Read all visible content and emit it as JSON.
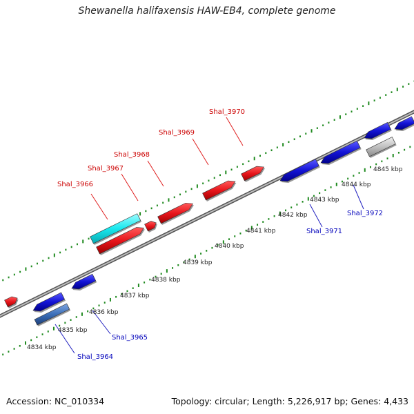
{
  "title": "Shewanella halifaxensis HAW-EB4, complete genome",
  "footer": {
    "accession": "Accession: NC_010334",
    "info": "Topology: circular; Length: 5,226,917 bp; Genes: 4,433"
  },
  "colors": {
    "forward_gene": "#e8161c",
    "reverse_gene": "#1414d6",
    "highlight_gene": "#18e8ee",
    "selected_gene": "#3c6fb8",
    "other_feature": "#c0c0c0",
    "backbone": "#888888",
    "tick": "#1f8a1f",
    "forward_label": "#cc0000",
    "reverse_label": "#0000bb"
  },
  "kbp_labels": [
    "4834 kbp",
    "4835 kbp",
    "4836 kbp",
    "4837 kbp",
    "4838 kbp",
    "4839 kbp",
    "4840 kbp",
    "4841 kbp",
    "4842 kbp",
    "4843 kbp",
    "4844 kbp",
    "4845 kbp"
  ],
  "gene_labels": [
    {
      "id": "Shal_3964",
      "strand": "reverse"
    },
    {
      "id": "Shal_3965",
      "strand": "reverse"
    },
    {
      "id": "Shal_3966",
      "strand": "forward"
    },
    {
      "id": "Shal_3967",
      "strand": "forward"
    },
    {
      "id": "Shal_3968",
      "strand": "forward"
    },
    {
      "id": "Shal_3969",
      "strand": "forward"
    },
    {
      "id": "Shal_3970",
      "strand": "forward"
    },
    {
      "id": "Shal_3971",
      "strand": "reverse"
    },
    {
      "id": "Shal_3972",
      "strand": "reverse"
    }
  ]
}
